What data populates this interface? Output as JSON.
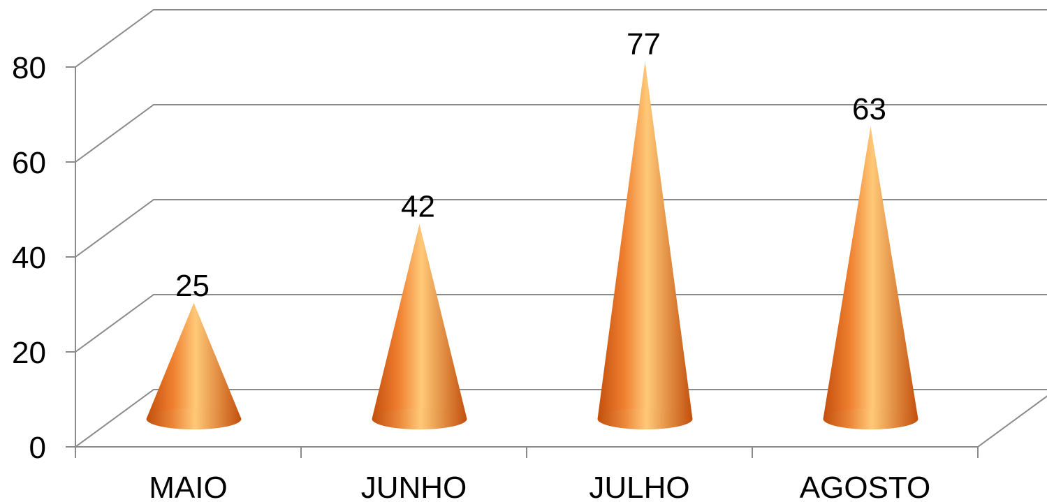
{
  "chart_data": {
    "type": "bar",
    "mark": "cone",
    "style": "3d",
    "title": "",
    "xlabel": "",
    "ylabel": "",
    "categories": [
      "MAIO",
      "JUNHO",
      "JULHO",
      "AGOSTO"
    ],
    "series": [
      {
        "values": [
          25,
          42,
          77,
          63
        ]
      }
    ],
    "ylim": [
      0,
      80
    ],
    "yticks": [
      0,
      20,
      40,
      60,
      80
    ],
    "grid": true,
    "legend": "none",
    "data_labels": true,
    "colors": {
      "cone_dark": "#c24f0c",
      "cone_mid": "#ef7f30",
      "cone_light": "#ffc978",
      "grid": "#8a8a8a"
    }
  }
}
